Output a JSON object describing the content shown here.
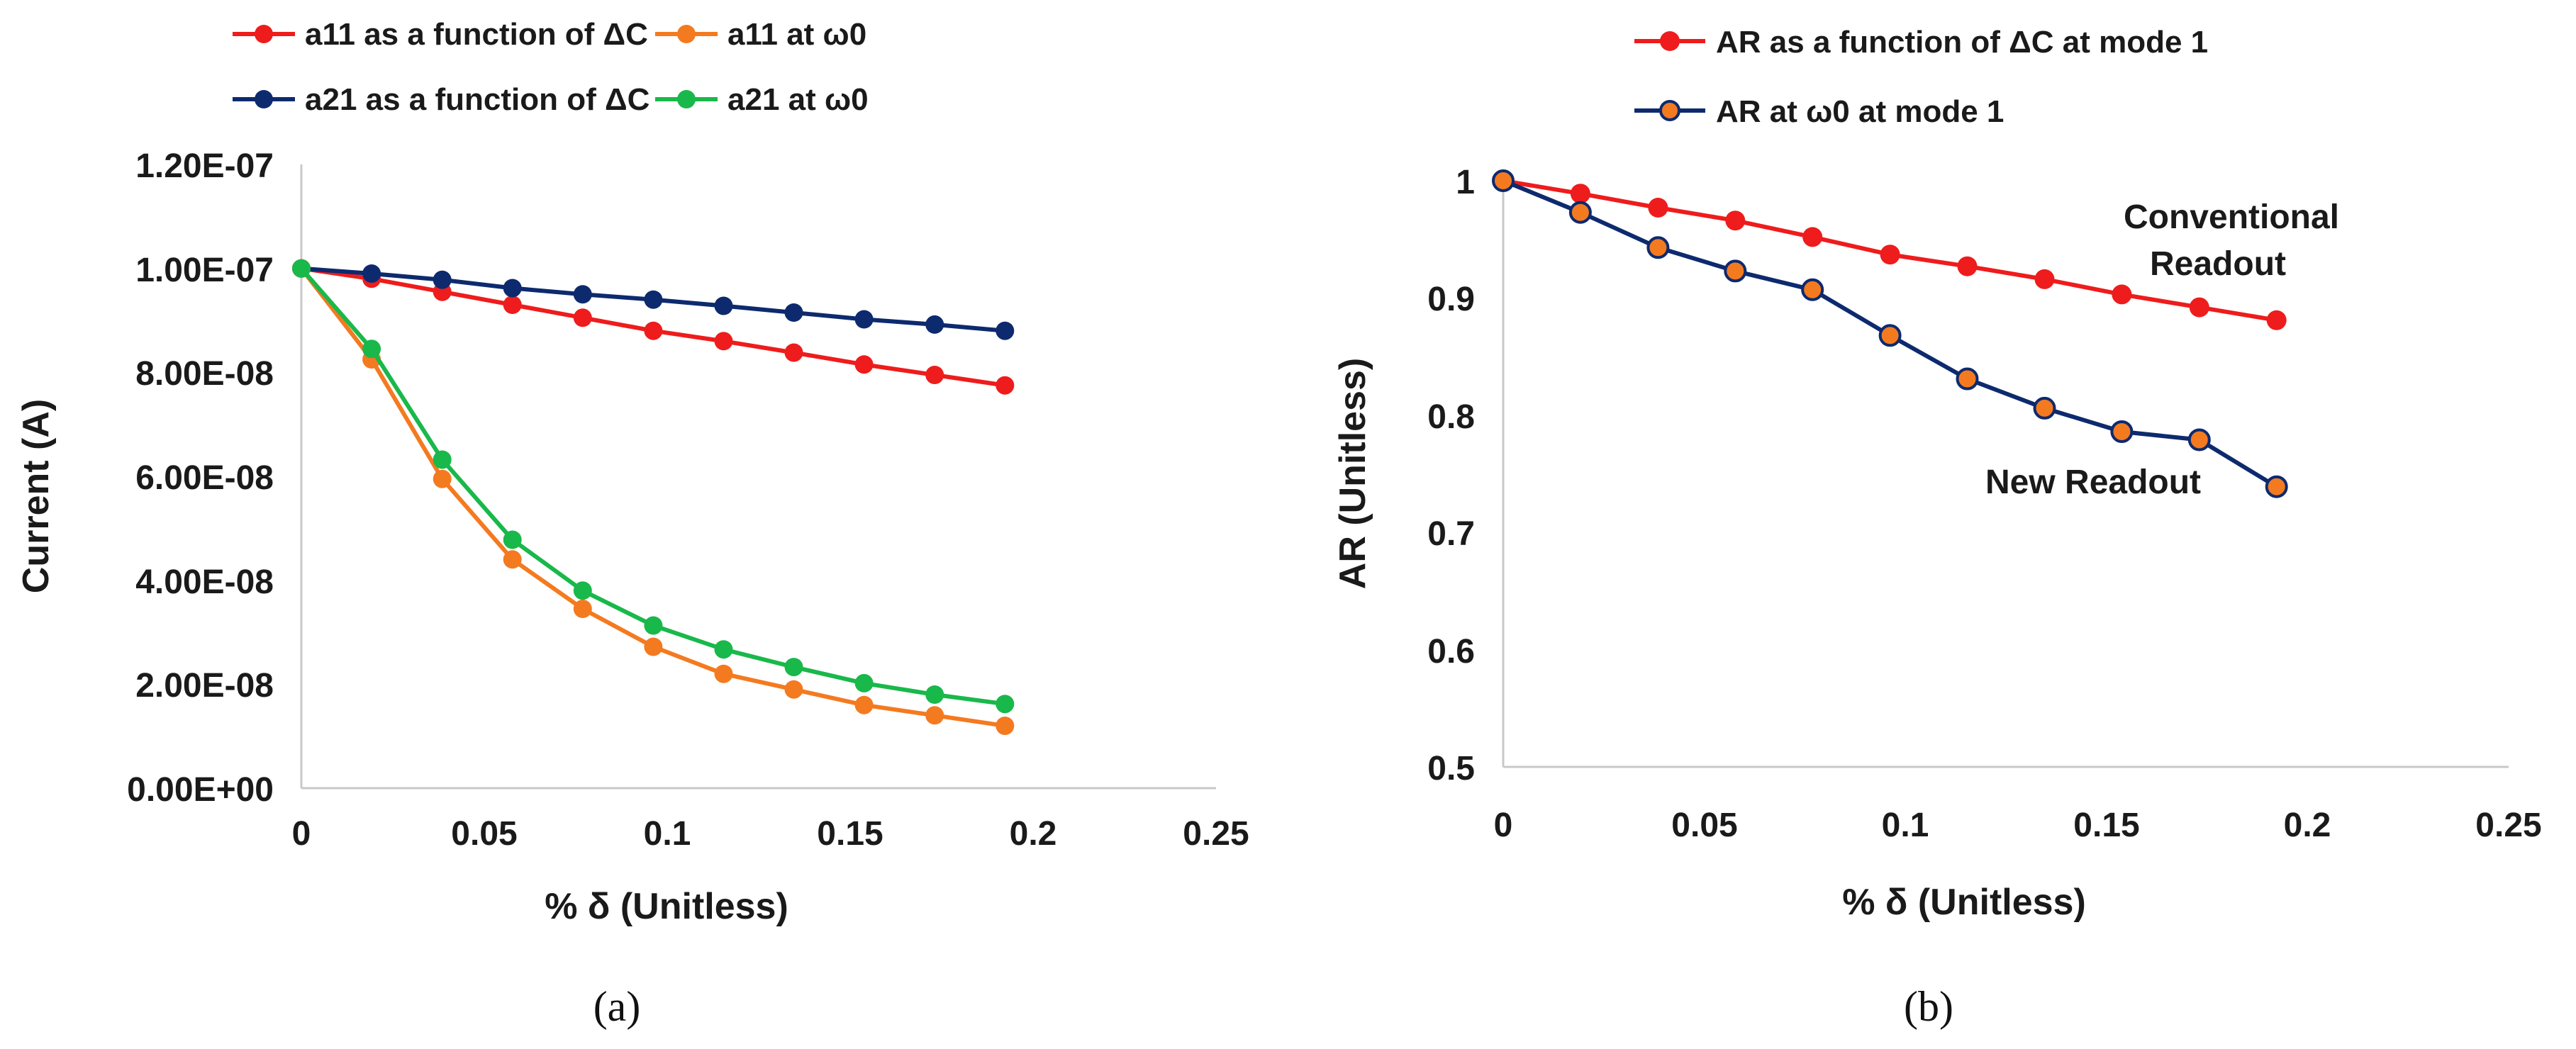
{
  "chart_data": [
    {
      "type": "line",
      "panel_label": "(a)",
      "xlabel": "% δ (Unitless)",
      "ylabel": "Current (A)",
      "xlim": [
        0,
        0.25
      ],
      "ylim": [
        0,
        1.2e-07
      ],
      "xticks": [
        "0",
        "0.05",
        "0.1",
        "0.15",
        "0.2",
        "0.25"
      ],
      "yticks": [
        "0.00E+00",
        "2.00E-08",
        "4.00E-08",
        "6.00E-08",
        "8.00E-08",
        "1.00E-07",
        "1.20E-07"
      ],
      "x": [
        0,
        0.0192,
        0.0385,
        0.0577,
        0.0769,
        0.0962,
        0.1154,
        0.1346,
        0.1538,
        0.1731,
        0.1923
      ],
      "series": [
        {
          "name": "a11 as a function of ΔC",
          "color": "#ee1c1c",
          "marker_fill": "#ee1c1c",
          "marker_stroke": "#ee1c1c",
          "values": [
            1e-07,
            9.8e-08,
            9.55e-08,
            9.3e-08,
            9.05e-08,
            8.8e-08,
            8.6e-08,
            8.38e-08,
            8.15e-08,
            7.95e-08,
            7.75e-08
          ]
        },
        {
          "name": "a11 at ω0",
          "color": "#f47a20",
          "marker_fill": "#f47a20",
          "marker_stroke": "#f47a20",
          "values": [
            1e-07,
            8.25e-08,
            5.95e-08,
            4.4e-08,
            3.45e-08,
            2.72e-08,
            2.2e-08,
            1.9e-08,
            1.6e-08,
            1.4e-08,
            1.2e-08
          ]
        },
        {
          "name": "a21 as a function of ΔC",
          "color": "#0d2a6e",
          "marker_fill": "#0d2a6e",
          "marker_stroke": "#0d2a6e",
          "values": [
            1e-07,
            9.9e-08,
            9.78e-08,
            9.62e-08,
            9.5e-08,
            9.4e-08,
            9.28e-08,
            9.15e-08,
            9.02e-08,
            8.92e-08,
            8.8e-08
          ]
        },
        {
          "name": "a21 at ω0",
          "color": "#19b84a",
          "marker_fill": "#19b84a",
          "marker_stroke": "#19b84a",
          "values": [
            1e-07,
            8.45e-08,
            6.32e-08,
            4.78e-08,
            3.8e-08,
            3.13e-08,
            2.67e-08,
            2.33e-08,
            2.02e-08,
            1.8e-08,
            1.62e-08
          ]
        }
      ],
      "annotations": []
    },
    {
      "type": "line",
      "panel_label": "(b)",
      "xlabel": "% δ (Unitless)",
      "ylabel": "AR (Unitless)",
      "xlim": [
        0,
        0.25
      ],
      "ylim": [
        0.5,
        1.0
      ],
      "xticks": [
        "0",
        "0.05",
        "0.1",
        "0.15",
        "0.2",
        "0.25"
      ],
      "yticks": [
        "0.5",
        "0.6",
        "0.7",
        "0.8",
        "0.9",
        "1"
      ],
      "x": [
        0,
        0.0192,
        0.0385,
        0.0577,
        0.0769,
        0.0962,
        0.1154,
        0.1346,
        0.1538,
        0.1731,
        0.1923
      ],
      "series": [
        {
          "name": "AR as a function of ΔC at mode 1",
          "color": "#ee1c1c",
          "marker_fill": "#ee1c1c",
          "marker_stroke": "#ee1c1c",
          "values": [
            1.0,
            0.989,
            0.977,
            0.966,
            0.952,
            0.937,
            0.927,
            0.916,
            0.903,
            0.892,
            0.881
          ]
        },
        {
          "name": "AR at ω0 at mode 1",
          "color": "#0d2a6e",
          "marker_fill": "#f47a20",
          "marker_stroke": "#0d2a6e",
          "values": [
            1.0,
            0.973,
            0.943,
            0.923,
            0.907,
            0.868,
            0.831,
            0.806,
            0.786,
            0.779,
            0.739
          ]
        }
      ],
      "annotations": [
        "Conventional",
        "Readout",
        "New Readout"
      ]
    }
  ]
}
